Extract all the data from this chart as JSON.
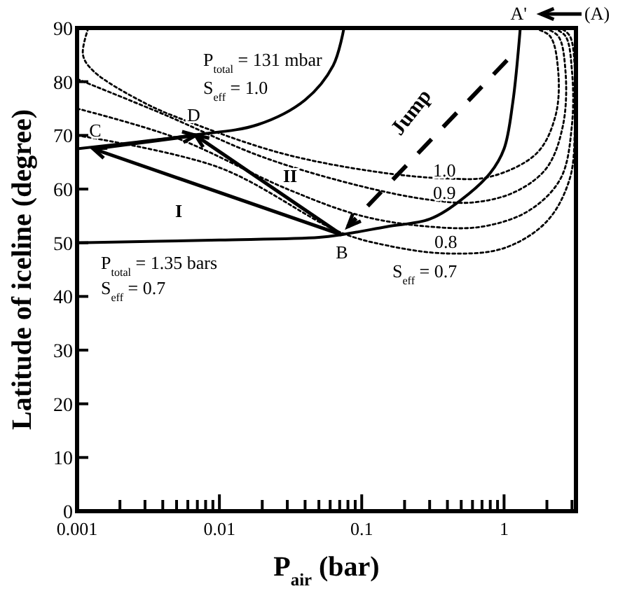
{
  "chart_data": {
    "type": "line",
    "xlabel": "P$_{air}$ (bar)",
    "ylabel": "Latitude of iceline (degree)",
    "log": "x",
    "grid": false,
    "marker": "none",
    "xlim": [
      0.001,
      3.2
    ],
    "ylim": [
      0,
      90
    ],
    "xticks": [
      0.001,
      {
        "value": 0.002,
        "label": null
      },
      {
        "value": 0.003,
        "label": null
      },
      {
        "value": 0.004,
        "label": null
      },
      {
        "value": 0.005,
        "label": null
      },
      {
        "value": 0.006,
        "label": null
      },
      {
        "value": 0.007,
        "label": null
      },
      {
        "value": 0.008,
        "label": null
      },
      {
        "value": 0.009,
        "label": null
      },
      0.01,
      {
        "value": 0.02,
        "label": null
      },
      {
        "value": 0.03,
        "label": null
      },
      {
        "value": 0.04,
        "label": null
      },
      {
        "value": 0.05,
        "label": null
      },
      {
        "value": 0.06,
        "label": null
      },
      {
        "value": 0.07,
        "label": null
      },
      {
        "value": 0.08,
        "label": null
      },
      {
        "value": 0.09,
        "label": null
      },
      0.1,
      {
        "value": 0.2,
        "label": null
      },
      {
        "value": 0.3,
        "label": null
      },
      {
        "value": 0.4,
        "label": null
      },
      {
        "value": 0.5,
        "label": null
      },
      {
        "value": 0.6,
        "label": null
      },
      {
        "value": 0.7,
        "label": null
      },
      {
        "value": 0.8,
        "label": null
      },
      {
        "value": 0.9,
        "label": null
      },
      1,
      {
        "value": 2,
        "label": null
      },
      {
        "value": 3,
        "label": null
      }
    ],
    "yticks": [
      0,
      10,
      20,
      30,
      40,
      50,
      60,
      70,
      80,
      90
    ],
    "series": [
      {
        "color": "#000000",
        "line_style": "solid",
        "x": [
          0.001,
          0.01,
          0.05,
          0.072,
          0.15,
          0.3,
          0.5,
          0.8,
          1.0,
          1.15,
          1.3
        ],
        "values": [
          50,
          50.5,
          51,
          51.5,
          53,
          54.4,
          58,
          63,
          67.5,
          76,
          90
        ]
      },
      {
        "color": "#000000",
        "line_style": "solid",
        "x": [
          0.001,
          0.0063,
          0.0186,
          0.04,
          0.063,
          0.075
        ],
        "values": [
          67.5,
          70,
          72,
          76.6,
          83,
          90
        ]
      },
      {
        "color": "#000000",
        "line_style": "dotted",
        "x": [
          0.0012,
          0.0011,
          0.0013,
          0.003,
          0.006,
          0.027,
          0.12,
          0.38,
          0.8,
          1.7,
          2.3,
          2.4,
          2.1,
          1.6
        ],
        "values": [
          90,
          85,
          82,
          76,
          72.6,
          66.7,
          63.3,
          62,
          62.3,
          66.7,
          73.7,
          82,
          88.5,
          90
        ]
      },
      {
        "color": "#000000",
        "line_style": "dotted",
        "x": [
          0.001,
          0.004,
          0.02,
          0.1,
          0.3,
          0.6,
          1.2,
          2,
          2.6,
          2.7,
          2.4,
          1.9
        ],
        "values": [
          80.5,
          74,
          66,
          60.5,
          58,
          57.5,
          59.5,
          64,
          72,
          82,
          88.5,
          90
        ]
      },
      {
        "color": "#000000",
        "line_style": "dotted",
        "x": [
          0.001,
          0.005,
          0.03,
          0.1,
          0.3,
          0.7,
          1.5,
          2.5,
          3,
          3,
          2.7,
          2.2
        ],
        "values": [
          75,
          69.5,
          60,
          55,
          53,
          53,
          56,
          62,
          72,
          82,
          88.5,
          90
        ]
      },
      {
        "color": "#000000",
        "line_style": "dotted",
        "x": [
          0.001,
          0.01,
          0.07,
          0.15,
          0.4,
          1,
          2,
          2.9,
          3.15,
          3.15,
          2.9,
          2.5
        ],
        "values": [
          70,
          64,
          52,
          49.5,
          48,
          49,
          54,
          62,
          72,
          82,
          88.5,
          90
        ]
      }
    ],
    "annotations": [
      "(A)",
      {
        "text": "A'",
        "x": 1.3,
        "y": 90
      },
      {
        "text": "B",
        "x": 0.072,
        "y": 51.5
      },
      {
        "text": "C",
        "x": 0.0013,
        "y": 67.5
      },
      {
        "text": "D",
        "x": 0.0068,
        "y": 70
      },
      "I",
      "II",
      "P$_{total}$ = 131 mbar",
      "S$_{eff}$ = 1.0",
      "P$_{total}$ = 1.35 bars",
      "S$_{eff}$ = 0.7",
      "1.0",
      "0.9",
      "0.8",
      "S$_{eff}$ = 0.7",
      "Jump"
    ]
  }
}
